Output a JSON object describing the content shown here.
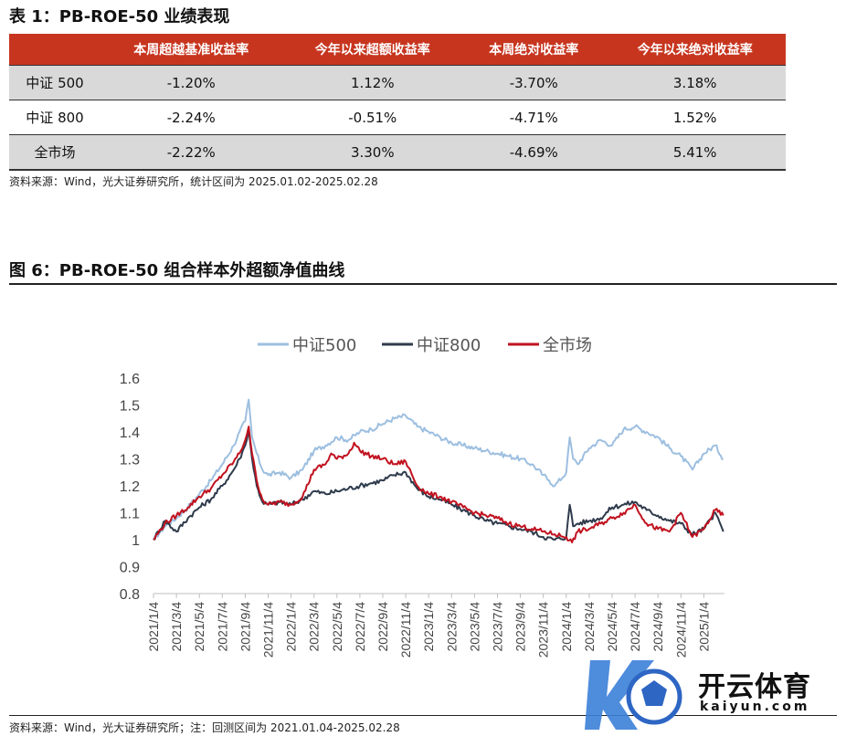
{
  "table1": {
    "title": "表 1：PB-ROE-50 业绩表现",
    "headers": [
      "",
      "本周超越基准收益率",
      "今年以来超额收益率",
      "本周绝对收益率",
      "今年以来绝对收益率"
    ],
    "rows": [
      {
        "name": "中证 500",
        "values": [
          "-1.20%",
          "1.12%",
          "-3.70%",
          "3.18%"
        ]
      },
      {
        "name": "中证 800",
        "values": [
          "-2.24%",
          "-0.51%",
          "-4.71%",
          "1.52%"
        ]
      },
      {
        "name": "全市场",
        "values": [
          "-2.22%",
          "3.30%",
          "-4.69%",
          "5.41%"
        ]
      }
    ],
    "source": "资料来源：Wind，光大证券研究所，统计区间为 2025.01.02-2025.02.28"
  },
  "figure6": {
    "title": "图 6：PB-ROE-50 组合样本外超额净值曲线",
    "source": "资料来源：Wind，光大证券研究所；注：回测区间为 2021.01.04-2025.02.28"
  },
  "watermark": {
    "brand": "开云体育",
    "domain": "kaiyun.com"
  },
  "chart_data": {
    "type": "line",
    "title": "",
    "xlabel": "",
    "ylabel": "",
    "ylim": [
      0.8,
      1.6
    ],
    "yticks": [
      "1.6",
      "1.5",
      "1.4",
      "1.3",
      "1.2",
      "1.1",
      "1",
      "0.9",
      "0.8"
    ],
    "xticks": [
      "2021/1/4",
      "2021/3/4",
      "2021/5/4",
      "2021/7/4",
      "2021/9/4",
      "2021/11/4",
      "2022/1/4",
      "2022/3/4",
      "2022/5/4",
      "2022/7/4",
      "2022/9/4",
      "2022/11/4",
      "2023/1/4",
      "2023/3/4",
      "2023/5/4",
      "2023/7/4",
      "2023/9/4",
      "2023/11/4",
      "2024/1/4",
      "2024/3/4",
      "2024/5/4",
      "2024/7/4",
      "2024/9/4",
      "2024/11/4",
      "2025/1/4"
    ],
    "x_months": [
      0,
      2,
      4,
      6,
      8,
      10,
      12,
      14,
      16,
      18,
      20,
      22,
      24,
      26,
      28,
      30,
      32,
      34,
      36,
      38,
      40,
      42,
      44,
      46,
      48
    ],
    "x_range_months": [
      0,
      49.8
    ],
    "legend_position": "top-center",
    "colors": {
      "csi500": "#9dbfe0",
      "csi800": "#2f3b4c",
      "market": "#c1121f"
    },
    "series": [
      {
        "name": "中证500",
        "color": "#9dbfe0",
        "x": [
          0,
          1,
          2,
          3,
          4,
          5,
          6,
          7,
          7.5,
          8,
          8.3,
          8.6,
          9,
          9.5,
          10,
          11,
          12,
          13,
          14,
          15,
          16,
          17,
          18,
          19,
          20,
          21,
          22,
          23,
          24,
          25,
          26,
          27,
          28,
          29,
          30,
          31,
          32,
          33,
          34,
          34.5,
          35,
          36,
          36.3,
          36.6,
          37,
          38,
          39,
          40,
          41,
          42,
          43,
          44,
          45,
          46,
          47,
          48,
          49,
          49.7
        ],
        "y": [
          1.0,
          1.05,
          1.08,
          1.12,
          1.17,
          1.22,
          1.28,
          1.35,
          1.4,
          1.44,
          1.52,
          1.38,
          1.32,
          1.26,
          1.24,
          1.25,
          1.23,
          1.26,
          1.33,
          1.35,
          1.38,
          1.37,
          1.4,
          1.41,
          1.43,
          1.45,
          1.46,
          1.42,
          1.4,
          1.38,
          1.36,
          1.35,
          1.34,
          1.33,
          1.32,
          1.31,
          1.3,
          1.28,
          1.24,
          1.22,
          1.2,
          1.25,
          1.38,
          1.3,
          1.28,
          1.34,
          1.37,
          1.35,
          1.41,
          1.42,
          1.4,
          1.38,
          1.34,
          1.31,
          1.26,
          1.32,
          1.35,
          1.3
        ]
      },
      {
        "name": "中证800",
        "color": "#2f3b4c",
        "x": [
          0,
          1,
          2,
          3,
          4,
          5,
          6,
          7,
          7.5,
          8,
          8.3,
          8.6,
          9,
          9.5,
          10,
          11,
          12,
          13,
          14,
          15,
          16,
          17,
          18,
          19,
          20,
          21,
          22,
          23,
          24,
          25,
          26,
          27,
          28,
          29,
          30,
          31,
          32,
          33,
          34,
          35,
          36,
          36.3,
          36.6,
          37,
          38,
          39,
          40,
          41,
          42,
          43,
          44,
          45,
          46,
          47,
          48,
          49,
          49.7
        ],
        "y": [
          1.0,
          1.07,
          1.03,
          1.08,
          1.12,
          1.15,
          1.2,
          1.26,
          1.3,
          1.35,
          1.41,
          1.3,
          1.2,
          1.14,
          1.13,
          1.14,
          1.13,
          1.15,
          1.18,
          1.17,
          1.18,
          1.19,
          1.2,
          1.21,
          1.22,
          1.24,
          1.25,
          1.19,
          1.16,
          1.15,
          1.13,
          1.11,
          1.09,
          1.07,
          1.06,
          1.05,
          1.04,
          1.03,
          1.01,
          1.0,
          1.01,
          1.13,
          1.05,
          1.06,
          1.07,
          1.08,
          1.12,
          1.13,
          1.14,
          1.11,
          1.09,
          1.07,
          1.06,
          1.02,
          1.04,
          1.1,
          1.03
        ]
      },
      {
        "name": "全市场",
        "color": "#c1121f",
        "x": [
          0,
          1,
          2,
          3,
          4,
          5,
          6,
          7,
          7.5,
          8,
          8.3,
          8.6,
          9,
          9.5,
          10,
          11,
          12,
          13,
          14,
          15,
          15.5,
          16,
          17,
          17.5,
          18,
          19,
          20,
          21,
          22,
          23,
          24,
          25,
          26,
          27,
          28,
          29,
          30,
          31,
          32,
          33,
          34,
          35,
          36,
          36.5,
          37,
          38,
          39,
          40,
          41,
          42,
          43,
          44,
          45,
          46,
          47,
          48,
          49,
          49.7
        ],
        "y": [
          1.0,
          1.06,
          1.09,
          1.12,
          1.16,
          1.19,
          1.24,
          1.29,
          1.32,
          1.37,
          1.42,
          1.32,
          1.22,
          1.15,
          1.13,
          1.14,
          1.13,
          1.16,
          1.26,
          1.28,
          1.32,
          1.3,
          1.32,
          1.36,
          1.33,
          1.31,
          1.3,
          1.28,
          1.29,
          1.2,
          1.17,
          1.16,
          1.14,
          1.12,
          1.1,
          1.09,
          1.08,
          1.06,
          1.05,
          1.04,
          1.03,
          1.02,
          1.01,
          0.99,
          1.03,
          1.04,
          1.06,
          1.08,
          1.1,
          1.13,
          1.06,
          1.04,
          1.03,
          1.1,
          1.01,
          1.04,
          1.11,
          1.09
        ]
      }
    ]
  }
}
